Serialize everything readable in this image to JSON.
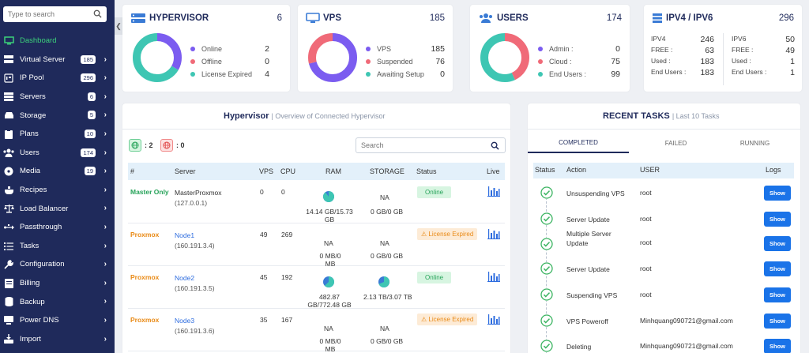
{
  "sidebar": {
    "search_placeholder": "Type to search",
    "items": [
      {
        "label": "Dashboard",
        "icon": "monitor-icon"
      },
      {
        "label": "Virtual Server",
        "badge": "185",
        "icon": "server-rack-icon"
      },
      {
        "label": "IP Pool",
        "badge": "296",
        "icon": "ip-icon"
      },
      {
        "label": "Servers",
        "badge": "6",
        "icon": "servers-icon"
      },
      {
        "label": "Storage",
        "badge": "5",
        "icon": "storage-icon"
      },
      {
        "label": "Plans",
        "badge": "10",
        "icon": "clipboard-icon"
      },
      {
        "label": "Users",
        "badge": "174",
        "icon": "users-icon"
      },
      {
        "label": "Media",
        "badge": "19",
        "icon": "disc-icon"
      },
      {
        "label": "Recipes",
        "icon": "recipe-icon"
      },
      {
        "label": "Load Balancer",
        "icon": "balance-icon"
      },
      {
        "label": "Passthrough",
        "icon": "usb-icon"
      },
      {
        "label": "Tasks",
        "icon": "tasks-icon"
      },
      {
        "label": "Configuration",
        "icon": "wrench-icon"
      },
      {
        "label": "Billing",
        "icon": "billing-icon"
      },
      {
        "label": "Backup",
        "icon": "database-icon"
      },
      {
        "label": "Power DNS",
        "icon": "dns-icon"
      },
      {
        "label": "Import",
        "icon": "import-icon"
      }
    ]
  },
  "colors": {
    "purple": "#7b5cf0",
    "red": "#f06a78",
    "teal": "#3ec6b3",
    "accent": "#1f2a5b",
    "green": "#3cd17a"
  },
  "summary": {
    "hypervisor": {
      "title": "HYPERVISOR",
      "count": "6",
      "legend": [
        {
          "label": "Online",
          "value": "2"
        },
        {
          "label": "Offline",
          "value": "0"
        },
        {
          "label": "License Expired",
          "value": "4"
        }
      ]
    },
    "vps": {
      "title": "VPS",
      "count": "185",
      "legend": [
        {
          "label": "VPS",
          "value": "185"
        },
        {
          "label": "Suspended",
          "value": "76"
        },
        {
          "label": "Awaiting Setup",
          "value": "0"
        }
      ]
    },
    "users": {
      "title": "USERS",
      "count": "174",
      "legend": [
        {
          "label": "Admin :",
          "value": "0"
        },
        {
          "label": "Cloud :",
          "value": "75"
        },
        {
          "label": "End Users :",
          "value": "99"
        }
      ]
    },
    "ip": {
      "title": "IPV4 / IPV6",
      "count": "296",
      "v4": [
        {
          "label": "IPV4",
          "value": "246"
        },
        {
          "label": "FREE :",
          "value": "63"
        },
        {
          "label": "Used :",
          "value": "183"
        },
        {
          "label": "End Users :",
          "value": "183"
        }
      ],
      "v6": [
        {
          "label": "IPV6",
          "value": "50"
        },
        {
          "label": "FREE :",
          "value": "49"
        },
        {
          "label": "Used :",
          "value": "1"
        },
        {
          "label": "End Users :",
          "value": "1"
        }
      ]
    }
  },
  "hyper_panel": {
    "title": "Hypervisor",
    "subtitle": "| Overview of Connected Hypervisor",
    "online_count": ": 2",
    "offline_count": ": 0",
    "search_placeholder": "Search",
    "columns": [
      "#",
      "Server",
      "VPS",
      "CPU",
      "RAM",
      "STORAGE",
      "Status",
      "Live"
    ],
    "rows": [
      {
        "type": "Master Only",
        "name": "MasterProxmox",
        "ip": "(127.0.0.1)",
        "vps": "0",
        "cpu": "0",
        "ram": "",
        "ram_sub": "14.14 GB/15.73 GB",
        "ram_pct": 0.9,
        "storage": "NA",
        "storage_sub": "0 GB/0 GB",
        "status": "Online"
      },
      {
        "type": "Proxmox",
        "name": "Node1",
        "ip": "(160.191.3.4)",
        "vps": "49",
        "cpu": "269",
        "ram": "NA",
        "ram_sub": "0 MB/0 MB",
        "storage": "NA",
        "storage_sub": "0 GB/0 GB",
        "status": "License Expired"
      },
      {
        "type": "Proxmox",
        "name": "Node2",
        "ip": "(160.191.3.5)",
        "vps": "45",
        "cpu": "192",
        "ram": "",
        "ram_sub": "482.87 GB/772.48 GB",
        "ram_pct": 0.63,
        "storage": "",
        "storage_sub": "2.13 TB/3.07 TB",
        "storage_pct": 0.69,
        "status": "Online"
      },
      {
        "type": "Proxmox",
        "name": "Node3",
        "ip": "(160.191.3.6)",
        "vps": "35",
        "cpu": "167",
        "ram": "NA",
        "ram_sub": "0 MB/0 MB",
        "storage": "NA",
        "storage_sub": "0 GB/0 GB",
        "status": "License Expired"
      }
    ]
  },
  "tasks_panel": {
    "title": "RECENT TASKS",
    "subtitle": "| Last 10 Tasks",
    "tabs": [
      "COMPLETED",
      "FAILED",
      "RUNNING"
    ],
    "columns": [
      "Status",
      "Action",
      "USER",
      "Logs"
    ],
    "show_label": "Show",
    "rows": [
      {
        "action": "Unsuspending VPS",
        "user": "root"
      },
      {
        "action": "Server Update",
        "user": "root"
      },
      {
        "action": "Multiple Server Update",
        "user": "root"
      },
      {
        "action": "Server Update",
        "user": "root"
      },
      {
        "action": "Suspending VPS",
        "user": "root"
      },
      {
        "action": "VPS Poweroff",
        "user": "Minhquang090721@gmail.com"
      },
      {
        "action": "Deleting",
        "user": "Minhquang090721@gmail.com"
      }
    ]
  }
}
